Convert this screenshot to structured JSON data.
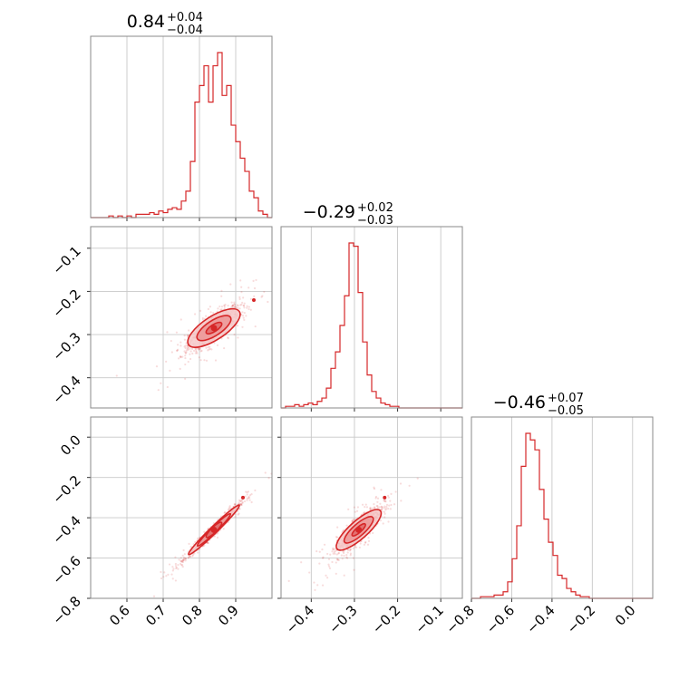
{
  "colors": {
    "accent": "#d62728",
    "fill_outer": "#f6c9c9",
    "fill_mid": "#ec9696",
    "fill_inner": "#e06a6a",
    "grid": "#c8c8c8"
  },
  "chart_data": {
    "type": "corner",
    "grid": true,
    "parameters": [
      {
        "id": "p0",
        "range": [
          0.5,
          1.0
        ],
        "ticks": [
          0.6,
          0.7,
          0.8,
          0.9
        ],
        "tick_labels": [
          "0.6",
          "0.7",
          "0.8",
          "0.9"
        ]
      },
      {
        "id": "p1",
        "range": [
          -0.47,
          -0.05
        ],
        "ticks": [
          -0.4,
          -0.3,
          -0.2,
          -0.1
        ],
        "tick_labels": [
          "−0.4",
          "−0.3",
          "−0.2",
          "−0.1"
        ]
      },
      {
        "id": "p2",
        "range": [
          -0.8,
          0.1
        ],
        "ticks": [
          -0.8,
          -0.6,
          -0.4,
          -0.2,
          0.0
        ],
        "tick_labels": [
          "−0.8",
          "−0.6",
          "−0.4",
          "−0.2",
          "0.0"
        ]
      }
    ],
    "titles": [
      {
        "value": "0.84",
        "plus": "+0.04",
        "minus": "−0.04"
      },
      {
        "value": "−0.29",
        "plus": "+0.02",
        "minus": "−0.03"
      },
      {
        "value": "−0.46",
        "plus": "+0.07",
        "minus": "−0.05"
      }
    ],
    "histograms": [
      {
        "param": 0,
        "bin_edges_range": [
          0.5,
          1.0
        ],
        "counts": [
          0,
          0,
          0,
          0,
          1,
          0,
          1,
          0,
          1,
          0,
          2,
          2,
          2,
          3,
          2,
          4,
          3,
          5,
          6,
          5,
          10,
          16,
          34,
          70,
          80,
          92,
          70,
          92,
          100,
          74,
          80,
          56,
          46,
          36,
          28,
          16,
          12,
          4,
          2,
          0
        ]
      },
      {
        "param": 1,
        "bin_edges_range": [
          -0.47,
          -0.05
        ],
        "counts": [
          0,
          1,
          1,
          2,
          1,
          2,
          3,
          2,
          4,
          6,
          12,
          24,
          34,
          50,
          68,
          100,
          98,
          70,
          40,
          20,
          10,
          6,
          3,
          2,
          1,
          1,
          0,
          0,
          0,
          0,
          0,
          0,
          0,
          0,
          0,
          0,
          0,
          0,
          0,
          0
        ]
      },
      {
        "param": 2,
        "bin_edges_range": [
          -0.8,
          0.1
        ],
        "counts": [
          0,
          0,
          1,
          1,
          1,
          2,
          2,
          4,
          10,
          24,
          44,
          80,
          100,
          96,
          90,
          66,
          48,
          34,
          26,
          14,
          12,
          6,
          4,
          2,
          1,
          1,
          0,
          0,
          0,
          0,
          0,
          0,
          0,
          0,
          0,
          0,
          0,
          0,
          0,
          0
        ]
      }
    ],
    "pairs": [
      {
        "x_param": 0,
        "y_param": 1,
        "center": [
          0.84,
          -0.285
        ],
        "slope": 0.55,
        "sd_x": 0.035,
        "sd_perp": 0.016,
        "scatter_count": 900,
        "outlier": [
          0.95,
          -0.22
        ]
      },
      {
        "x_param": 0,
        "y_param": 2,
        "center": [
          0.84,
          -0.46
        ],
        "slope": 1.75,
        "sd_x": 0.035,
        "sd_perp": 0.012,
        "scatter_count": 900,
        "outlier": [
          0.92,
          -0.3
        ]
      },
      {
        "x_param": 1,
        "y_param": 2,
        "center": [
          -0.29,
          -0.46
        ],
        "slope": 1.9,
        "sd_x": 0.025,
        "sd_perp": 0.03,
        "scatter_count": 900,
        "outlier": [
          -0.23,
          -0.3
        ]
      }
    ]
  }
}
